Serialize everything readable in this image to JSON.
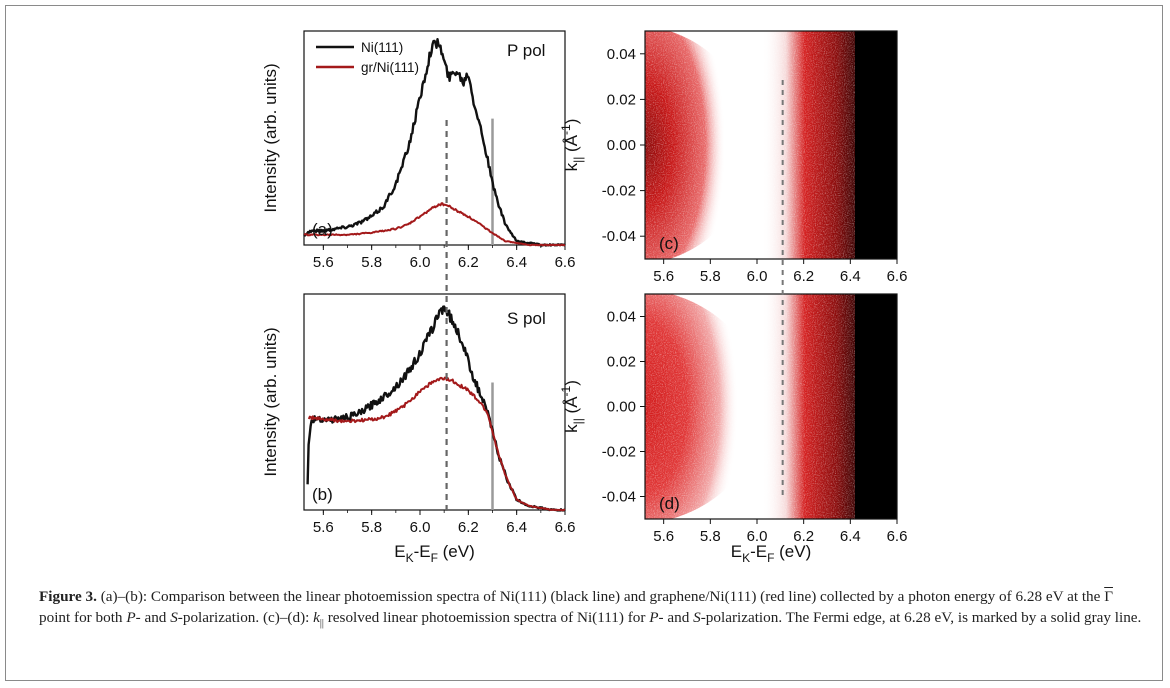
{
  "figure": {
    "panels": {
      "a": {
        "label": "(a)",
        "pol": "P pol"
      },
      "b": {
        "label": "(b)",
        "pol": "S pol"
      },
      "c": {
        "label": "(c)"
      },
      "d": {
        "label": "(d)"
      }
    },
    "legend": {
      "black": "Ni(111)",
      "red": "gr/Ni(111)"
    },
    "ylabel_left": "Intensity (arb. units)",
    "ylabel_right_main": "k",
    "ylabel_right_sub": "||",
    "ylabel_right_unit_open": " (Å",
    "ylabel_right_unit_exp": "-1",
    "ylabel_right_unit_close": ")",
    "xlabel_main_1": "E",
    "xlabel_sub_1": "K",
    "xlabel_mid": "-E",
    "xlabel_sub_2": "F",
    "xlabel_unit": " (eV)"
  },
  "caption": {
    "bold": "Figure 3.",
    "t1": " (a)–(b): Comparison between the linear photoemission spectra of Ni(111) (black line) and graphene/Ni(111) (red line) collected by a photon energy of 6.28  eV at the ",
    "gamma": "Γ",
    "t2": " point for both ",
    "p": "P",
    "t3": "- and ",
    "s": "S",
    "t4": "-polarization. (c)–(d): ",
    "k": "k",
    "ksub": "||",
    "t5": " resolved linear photoemission spectra of Ni(111) for ",
    "p2": "P",
    "t6": "- and ",
    "s2": "S",
    "t7": "-polarization. The Fermi edge, at 6.28  eV, is marked by a solid gray line."
  },
  "colors": {
    "black_line": "#111111",
    "red_line": "#a3191a",
    "map_red": "#d01818",
    "fermi_gray": "#9a9a9a"
  },
  "chart_data": [
    {
      "type": "line",
      "panel": "a",
      "title": "P pol",
      "xlabel": "E_K-E_F (eV)",
      "ylabel": "Intensity (arb. units)",
      "xlim": [
        5.52,
        6.6
      ],
      "ylim": [
        0,
        1.05
      ],
      "x_ticks": [
        "5.6",
        "5.8",
        "6.0",
        "6.2",
        "6.4",
        "6.6"
      ],
      "fermi_edge": 6.3,
      "dashed_line": 6.11,
      "series": [
        {
          "name": "Ni(111)",
          "color": "#111111",
          "x": [
            5.52,
            5.55,
            5.6,
            5.65,
            5.7,
            5.75,
            5.8,
            5.85,
            5.9,
            5.95,
            6.0,
            6.03,
            6.05,
            6.08,
            6.1,
            6.12,
            6.15,
            6.18,
            6.2,
            6.22,
            6.25,
            6.28,
            6.3,
            6.33,
            6.35,
            6.38,
            6.4,
            6.45,
            6.5,
            6.55,
            6.6
          ],
          "y": [
            0.05,
            0.07,
            0.07,
            0.08,
            0.09,
            0.11,
            0.14,
            0.19,
            0.3,
            0.47,
            0.72,
            0.88,
            0.98,
            0.99,
            0.9,
            0.82,
            0.86,
            0.8,
            0.85,
            0.72,
            0.58,
            0.42,
            0.3,
            0.18,
            0.11,
            0.05,
            0.02,
            0.01,
            0.0,
            0.0,
            0.0
          ]
        },
        {
          "name": "gr/Ni(111)",
          "color": "#a3191a",
          "x": [
            5.52,
            5.6,
            5.7,
            5.8,
            5.9,
            5.95,
            6.0,
            6.05,
            6.08,
            6.1,
            6.12,
            6.15,
            6.2,
            6.25,
            6.3,
            6.35,
            6.4,
            6.45,
            6.5,
            6.55,
            6.6
          ],
          "y": [
            0.05,
            0.05,
            0.05,
            0.06,
            0.08,
            0.1,
            0.14,
            0.18,
            0.2,
            0.2,
            0.19,
            0.17,
            0.14,
            0.1,
            0.06,
            0.02,
            0.01,
            0.0,
            0.0,
            0.0,
            0.0
          ]
        }
      ]
    },
    {
      "type": "line",
      "panel": "b",
      "title": "S pol",
      "xlabel": "E_K-E_F (eV)",
      "ylabel": "Intensity (arb. units)",
      "xlim": [
        5.52,
        6.6
      ],
      "ylim": [
        0,
        1.05
      ],
      "x_ticks": [
        "5.6",
        "5.8",
        "6.0",
        "6.2",
        "6.4",
        "6.6"
      ],
      "fermi_edge": 6.3,
      "dashed_line": 6.11,
      "series": [
        {
          "name": "Ni(111)",
          "color": "#111111",
          "x": [
            5.535,
            5.54,
            5.55,
            5.58,
            5.6,
            5.65,
            5.7,
            5.75,
            5.8,
            5.85,
            5.9,
            5.95,
            6.0,
            6.05,
            6.08,
            6.1,
            6.12,
            6.15,
            6.18,
            6.2,
            6.22,
            6.25,
            6.28,
            6.3,
            6.33,
            6.36,
            6.4,
            6.45,
            6.5,
            6.55,
            6.6
          ],
          "y": [
            0.12,
            0.35,
            0.43,
            0.45,
            0.44,
            0.44,
            0.45,
            0.47,
            0.51,
            0.55,
            0.6,
            0.67,
            0.76,
            0.88,
            0.96,
            0.99,
            0.95,
            0.88,
            0.8,
            0.72,
            0.65,
            0.56,
            0.47,
            0.38,
            0.25,
            0.15,
            0.05,
            0.02,
            0.01,
            0.0,
            0.0
          ]
        },
        {
          "name": "gr/Ni(111)",
          "color": "#a3191a",
          "x": [
            5.54,
            5.6,
            5.7,
            5.8,
            5.85,
            5.9,
            5.95,
            6.0,
            6.05,
            6.1,
            6.15,
            6.2,
            6.25,
            6.28,
            6.3,
            6.33,
            6.36,
            6.4,
            6.45,
            6.5,
            6.55,
            6.6
          ],
          "y": [
            0.45,
            0.44,
            0.43,
            0.44,
            0.45,
            0.48,
            0.52,
            0.58,
            0.62,
            0.64,
            0.62,
            0.58,
            0.52,
            0.47,
            0.38,
            0.25,
            0.15,
            0.05,
            0.02,
            0.01,
            0.0,
            0.0
          ]
        }
      ]
    },
    {
      "type": "heatmap",
      "panel": "c",
      "xlabel": "E_K-E_F (eV)",
      "ylabel": "k_|| (Å^-1)",
      "xlim": [
        5.52,
        6.6
      ],
      "ylim": [
        -0.05,
        0.05
      ],
      "x_ticks": [
        "5.6",
        "5.8",
        "6.0",
        "6.2",
        "6.4",
        "6.6"
      ],
      "y_ticks": [
        "0.04",
        "0.02",
        "0.00",
        "-0.02",
        "-0.04"
      ],
      "dashed_line": 6.11
    },
    {
      "type": "heatmap",
      "panel": "d",
      "xlabel": "E_K-E_F (eV)",
      "ylabel": "k_|| (Å^-1)",
      "xlim": [
        5.52,
        6.6
      ],
      "ylim": [
        -0.05,
        0.05
      ],
      "x_ticks": [
        "5.6",
        "5.8",
        "6.0",
        "6.2",
        "6.4",
        "6.6"
      ],
      "y_ticks": [
        "0.04",
        "0.02",
        "0.00",
        "-0.02",
        "-0.04"
      ],
      "dashed_line": 6.11
    }
  ]
}
